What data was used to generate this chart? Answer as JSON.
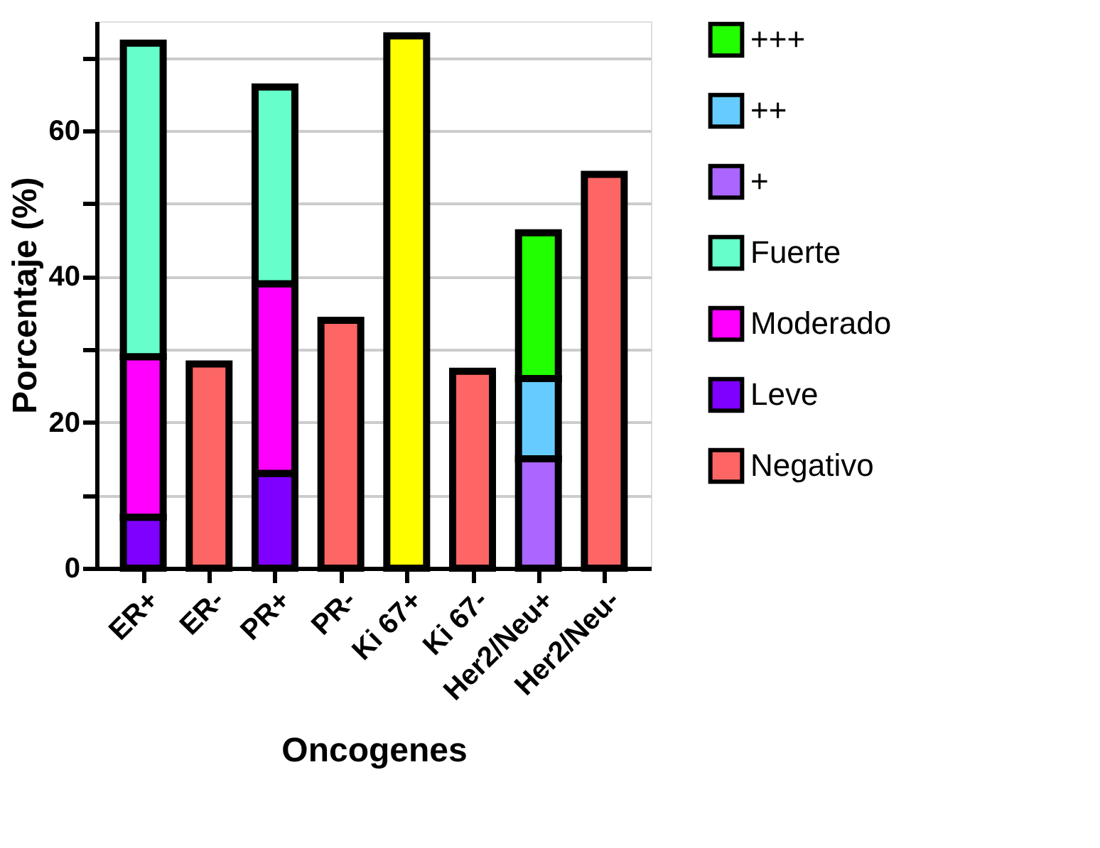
{
  "chart_data": {
    "type": "bar",
    "stacked": true,
    "xlabel": "Oncogenes",
    "ylabel": "Porcentaje (%)",
    "categories": [
      "ER+",
      "ER-",
      "PR+",
      "PR-",
      "Ki 67+",
      "Ki 67-",
      "Her2/Neu+",
      "Her2/Neu-"
    ],
    "series": [
      {
        "name": "Negativo",
        "color": "#fe6666",
        "values": [
          null,
          28,
          null,
          34,
          null,
          27,
          null,
          54
        ]
      },
      {
        "name": "Leve",
        "color": "#7f00ff",
        "values": [
          7,
          null,
          13,
          null,
          null,
          null,
          null,
          null
        ]
      },
      {
        "name": "Moderado",
        "color": "#ff00ff",
        "values": [
          22,
          null,
          26,
          null,
          null,
          null,
          null,
          null
        ]
      },
      {
        "name": "Fuerte",
        "color": "#66ffcc",
        "values": [
          43,
          null,
          27,
          null,
          null,
          null,
          null,
          null
        ]
      },
      {
        "name": "+",
        "color": "#aa66ff",
        "values": [
          null,
          null,
          null,
          null,
          null,
          null,
          15,
          null
        ]
      },
      {
        "name": "++",
        "color": "#66ccff",
        "values": [
          null,
          null,
          null,
          null,
          null,
          null,
          11,
          null
        ]
      },
      {
        "name": "+++",
        "color": "#22ff00",
        "values": [
          null,
          null,
          null,
          null,
          null,
          null,
          20,
          null
        ]
      },
      {
        "color": "#ffff00",
        "values": [
          null,
          null,
          null,
          null,
          73,
          null,
          null,
          null
        ]
      }
    ],
    "ylim": [
      0,
      75
    ],
    "yticks": [
      0,
      {
        "value": 10,
        "label": null
      },
      20,
      {
        "value": 30,
        "label": null
      },
      40,
      {
        "value": 50,
        "label": null
      },
      60,
      {
        "value": 70,
        "label": null
      }
    ],
    "grid": "y",
    "legend": "right"
  }
}
